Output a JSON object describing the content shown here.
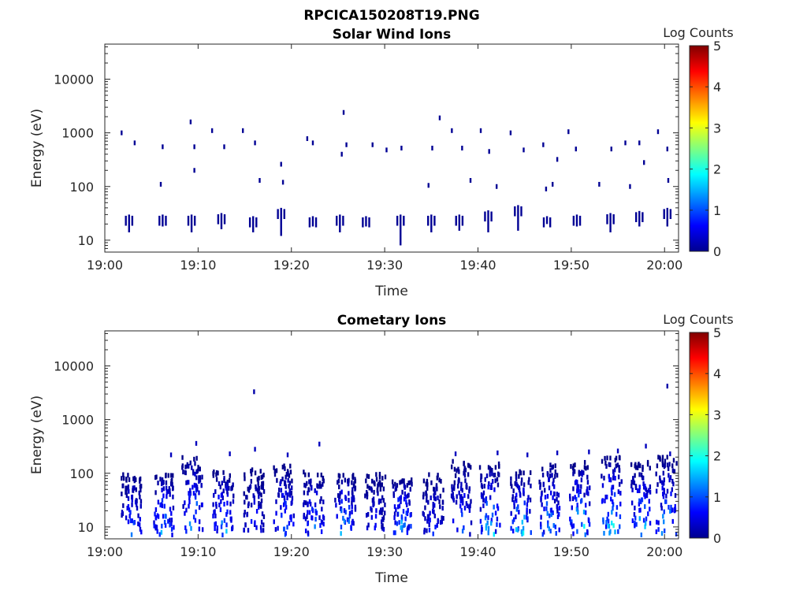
{
  "figure_title": "RPCICA150208T19.PNG",
  "panels": [
    {
      "title": "Solar Wind Ions",
      "xlabel": "Time",
      "ylabel": "Energy (eV)",
      "colorbar_label": "Log Counts",
      "colorbar_ticks": [
        "0",
        "1",
        "2",
        "3",
        "4",
        "5"
      ]
    },
    {
      "title": "Cometary Ions",
      "xlabel": "Time",
      "ylabel": "Energy (eV)",
      "colorbar_label": "Log Counts",
      "colorbar_ticks": [
        "0",
        "1",
        "2",
        "3",
        "4",
        "5"
      ]
    }
  ],
  "chart_data": [
    {
      "type": "heatmap",
      "title": "Solar Wind Ions",
      "xlabel": "Time",
      "ylabel": "Energy (eV)",
      "x_ticks": [
        "19:00",
        "19:10",
        "19:20",
        "19:30",
        "19:40",
        "19:50",
        "20:00"
      ],
      "y_ticks": [
        "10",
        "100",
        "1000",
        "10000"
      ],
      "y_scale": "log",
      "xlim_minutes": [
        0,
        61.5
      ],
      "ylim": [
        6,
        45000
      ],
      "colorbar": {
        "label": "Log Counts",
        "range": [
          0,
          5
        ],
        "colormap": "jet"
      },
      "cells": [
        {
          "t": 1.8,
          "e": 1000,
          "v": 0.1
        },
        {
          "t": 3.2,
          "e": 650,
          "v": 0.1
        },
        {
          "t": 6.2,
          "e": 550,
          "v": 0.1
        },
        {
          "t": 9.2,
          "e": 1600,
          "v": 0.1
        },
        {
          "t": 9.6,
          "e": 550,
          "v": 0.1
        },
        {
          "t": 11.5,
          "e": 1100,
          "v": 0.1
        },
        {
          "t": 12.8,
          "e": 550,
          "v": 0.1
        },
        {
          "t": 14.8,
          "e": 1100,
          "v": 0.1
        },
        {
          "t": 16.1,
          "e": 650,
          "v": 0.1
        },
        {
          "t": 18.9,
          "e": 260,
          "v": 0.1
        },
        {
          "t": 21.7,
          "e": 780,
          "v": 0.1
        },
        {
          "t": 22.3,
          "e": 650,
          "v": 0.1
        },
        {
          "t": 25.6,
          "e": 2400,
          "v": 0.1
        },
        {
          "t": 25.4,
          "e": 400,
          "v": 0.1
        },
        {
          "t": 25.9,
          "e": 600,
          "v": 0.1
        },
        {
          "t": 28.7,
          "e": 600,
          "v": 0.1
        },
        {
          "t": 30.2,
          "e": 480,
          "v": 0.1
        },
        {
          "t": 31.8,
          "e": 520,
          "v": 0.1
        },
        {
          "t": 34.7,
          "e": 105,
          "v": 0.1
        },
        {
          "t": 35.1,
          "e": 520,
          "v": 0.1
        },
        {
          "t": 35.9,
          "e": 1900,
          "v": 0.1
        },
        {
          "t": 37.2,
          "e": 1100,
          "v": 0.1
        },
        {
          "t": 38.3,
          "e": 520,
          "v": 0.1
        },
        {
          "t": 39.2,
          "e": 130,
          "v": 0.1
        },
        {
          "t": 40.3,
          "e": 1100,
          "v": 0.1
        },
        {
          "t": 41.2,
          "e": 450,
          "v": 0.1
        },
        {
          "t": 42.0,
          "e": 100,
          "v": 0.1
        },
        {
          "t": 43.5,
          "e": 1000,
          "v": 0.1
        },
        {
          "t": 44.9,
          "e": 480,
          "v": 0.1
        },
        {
          "t": 47.0,
          "e": 600,
          "v": 0.1
        },
        {
          "t": 48.5,
          "e": 320,
          "v": 0.1
        },
        {
          "t": 49.7,
          "e": 1050,
          "v": 0.1
        },
        {
          "t": 50.5,
          "e": 500,
          "v": 0.1
        },
        {
          "t": 54.3,
          "e": 500,
          "v": 0.1
        },
        {
          "t": 55.8,
          "e": 650,
          "v": 0.1
        },
        {
          "t": 57.3,
          "e": 650,
          "v": 0.1
        },
        {
          "t": 57.8,
          "e": 280,
          "v": 0.1
        },
        {
          "t": 59.3,
          "e": 1050,
          "v": 0.1
        },
        {
          "t": 60.3,
          "e": 500,
          "v": 0.1
        },
        {
          "t": 60.4,
          "e": 130,
          "v": 0.1
        },
        {
          "t": 6.0,
          "e": 110,
          "v": 0.1
        },
        {
          "t": 9.6,
          "e": 200,
          "v": 0.1
        },
        {
          "t": 16.6,
          "e": 130,
          "v": 0.1
        },
        {
          "t": 19.1,
          "e": 120,
          "v": 0.1
        },
        {
          "t": 47.3,
          "e": 90,
          "v": 0.1
        },
        {
          "t": 48.0,
          "e": 110,
          "v": 0.1
        },
        {
          "t": 53.0,
          "e": 110,
          "v": 0.1
        },
        {
          "t": 56.3,
          "e": 100,
          "v": 0.1
        }
      ],
      "columns": [
        {
          "t": 2.6,
          "e_min": 14,
          "e_max": 30,
          "v": 0.1
        },
        {
          "t": 6.2,
          "e_min": 18,
          "e_max": 30,
          "v": 0.1
        },
        {
          "t": 9.3,
          "e_min": 14,
          "e_max": 30,
          "v": 0.1
        },
        {
          "t": 12.5,
          "e_min": 16,
          "e_max": 32,
          "v": 0.1
        },
        {
          "t": 15.9,
          "e_min": 14,
          "e_max": 28,
          "v": 0.1
        },
        {
          "t": 18.9,
          "e_min": 12,
          "e_max": 40,
          "v": 0.1
        },
        {
          "t": 22.3,
          "e_min": 18,
          "e_max": 28,
          "v": 0.1
        },
        {
          "t": 25.2,
          "e_min": 14,
          "e_max": 30,
          "v": 0.1
        },
        {
          "t": 28.0,
          "e_min": 18,
          "e_max": 28,
          "v": 0.1
        },
        {
          "t": 31.7,
          "e_min": 8,
          "e_max": 30,
          "v": 0.1
        },
        {
          "t": 35.0,
          "e_min": 14,
          "e_max": 30,
          "v": 0.1
        },
        {
          "t": 38.0,
          "e_min": 15,
          "e_max": 30,
          "v": 0.1
        },
        {
          "t": 41.1,
          "e_min": 14,
          "e_max": 36,
          "v": 0.1
        },
        {
          "t": 44.3,
          "e_min": 15,
          "e_max": 45,
          "v": 0.1
        },
        {
          "t": 47.4,
          "e_min": 20,
          "e_max": 28,
          "v": 0.1
        },
        {
          "t": 50.6,
          "e_min": 18,
          "e_max": 30,
          "v": 0.1
        },
        {
          "t": 54.2,
          "e_min": 14,
          "e_max": 32,
          "v": 0.1
        },
        {
          "t": 57.3,
          "e_min": 18,
          "e_max": 35,
          "v": 0.1
        },
        {
          "t": 60.3,
          "e_min": 18,
          "e_max": 40,
          "v": 0.1
        }
      ]
    },
    {
      "type": "heatmap",
      "title": "Cometary Ions",
      "xlabel": "Time",
      "ylabel": "Energy (eV)",
      "x_ticks": [
        "19:00",
        "19:10",
        "19:20",
        "19:30",
        "19:40",
        "19:50",
        "20:00"
      ],
      "y_ticks": [
        "10",
        "100",
        "1000",
        "10000"
      ],
      "y_scale": "log",
      "xlim_minutes": [
        0,
        61.5
      ],
      "ylim": [
        6,
        45000
      ],
      "colorbar": {
        "label": "Log Counts",
        "range": [
          0,
          5
        ],
        "colormap": "jet"
      },
      "cells": [
        {
          "t": 16.0,
          "e": 3300,
          "v": 0.2
        },
        {
          "t": 60.3,
          "e": 4200,
          "v": 0.2
        },
        {
          "t": 9.8,
          "e": 360,
          "v": 0.3
        },
        {
          "t": 13.4,
          "e": 230,
          "v": 0.3
        },
        {
          "t": 16.1,
          "e": 280,
          "v": 0.3
        },
        {
          "t": 19.6,
          "e": 220,
          "v": 0.3
        },
        {
          "t": 23.0,
          "e": 350,
          "v": 0.3
        },
        {
          "t": 37.6,
          "e": 230,
          "v": 0.3
        },
        {
          "t": 42.1,
          "e": 240,
          "v": 0.3
        },
        {
          "t": 45.3,
          "e": 220,
          "v": 0.3
        },
        {
          "t": 48.5,
          "e": 240,
          "v": 0.3
        },
        {
          "t": 51.9,
          "e": 250,
          "v": 0.3
        },
        {
          "t": 55.0,
          "e": 260,
          "v": 0.3
        },
        {
          "t": 58.0,
          "e": 320,
          "v": 0.3
        },
        {
          "t": 60.6,
          "e": 230,
          "v": 0.3
        },
        {
          "t": 7.1,
          "e": 220,
          "v": 0.3
        }
      ],
      "bursts": [
        {
          "t": 2.9,
          "e_min": 7,
          "e_max": 95,
          "v_max": 1.3
        },
        {
          "t": 6.3,
          "e_min": 7,
          "e_max": 100,
          "v_max": 2.0
        },
        {
          "t": 9.4,
          "e_min": 7,
          "e_max": 200,
          "v_max": 2.0
        },
        {
          "t": 12.7,
          "e_min": 7,
          "e_max": 110,
          "v_max": 1.8
        },
        {
          "t": 16.0,
          "e_min": 7,
          "e_max": 120,
          "v_max": 1.0
        },
        {
          "t": 19.2,
          "e_min": 7,
          "e_max": 140,
          "v_max": 1.6
        },
        {
          "t": 22.4,
          "e_min": 7,
          "e_max": 110,
          "v_max": 1.6
        },
        {
          "t": 25.8,
          "e_min": 7,
          "e_max": 100,
          "v_max": 1.8
        },
        {
          "t": 29.0,
          "e_min": 8,
          "e_max": 100,
          "v_max": 0.9
        },
        {
          "t": 31.9,
          "e_min": 7,
          "e_max": 80,
          "v_max": 2.2
        },
        {
          "t": 35.2,
          "e_min": 7,
          "e_max": 95,
          "v_max": 1.0
        },
        {
          "t": 38.2,
          "e_min": 7,
          "e_max": 170,
          "v_max": 1.3
        },
        {
          "t": 41.3,
          "e_min": 7,
          "e_max": 150,
          "v_max": 2.0
        },
        {
          "t": 44.6,
          "e_min": 7,
          "e_max": 110,
          "v_max": 2.0
        },
        {
          "t": 47.7,
          "e_min": 7,
          "e_max": 170,
          "v_max": 1.8
        },
        {
          "t": 50.9,
          "e_min": 7,
          "e_max": 160,
          "v_max": 2.2
        },
        {
          "t": 54.3,
          "e_min": 7,
          "e_max": 200,
          "v_max": 2.4
        },
        {
          "t": 57.5,
          "e_min": 7,
          "e_max": 160,
          "v_max": 2.0
        },
        {
          "t": 60.2,
          "e_min": 7,
          "e_max": 200,
          "v_max": 1.8
        }
      ]
    }
  ]
}
